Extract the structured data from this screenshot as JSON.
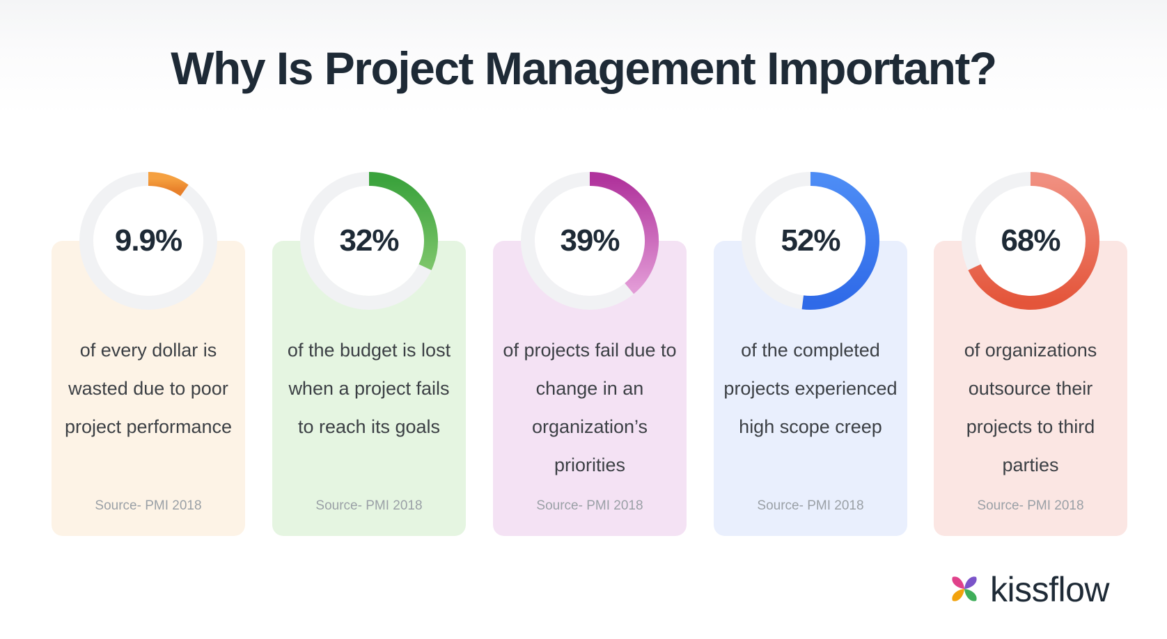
{
  "title": "Why Is Project Management Important?",
  "stats": [
    {
      "value": "9.9%",
      "fraction": 0.099,
      "description": "of every dollar is wasted due to poor project performance",
      "source": "Source- PMI 2018",
      "card_color": "#fdf3e6",
      "arc_color_start": "#f5a040",
      "arc_color_end": "#e8802a"
    },
    {
      "value": "32%",
      "fraction": 0.32,
      "description": "of the budget is lost when a project fails to reach its goals",
      "source": "Source- PMI 2018",
      "card_color": "#e5f5e1",
      "arc_color_start": "#3aa23c",
      "arc_color_end": "#7cc56a"
    },
    {
      "value": "39%",
      "fraction": 0.39,
      "description": "of projects fail due to change in an organization’s priorities",
      "source": "Source- PMI 2018",
      "card_color": "#f4e2f4",
      "arc_color_start": "#b0339c",
      "arc_color_end": "#e29ad6"
    },
    {
      "value": "52%",
      "fraction": 0.52,
      "description": "of the completed projects experienced high scope creep",
      "source": "Source- PMI 2018",
      "card_color": "#e9effd",
      "arc_color_start": "#4d8cf5",
      "arc_color_end": "#2f6ae8"
    },
    {
      "value": "68%",
      "fraction": 0.68,
      "description": "of organizations outsource their projects to third parties",
      "source": "Source- PMI 2018",
      "card_color": "#fbe6e3",
      "arc_color_start": "#f08f80",
      "arc_color_end": "#e4553a"
    }
  ],
  "logo": {
    "text": "kissflow",
    "icon": "kissflow-logo-icon",
    "colors": [
      "#e0418a",
      "#7b54c9",
      "#f2a20c",
      "#3fae5a"
    ]
  }
}
